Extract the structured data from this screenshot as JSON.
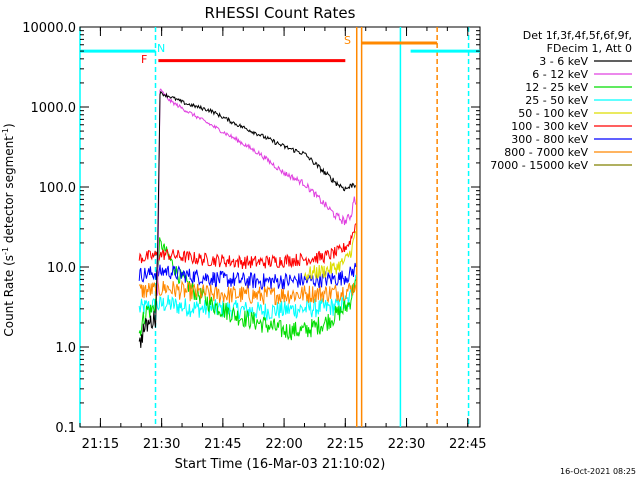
{
  "chart_data": {
    "type": "line",
    "title": "RHESSI Count Rates",
    "xlabel": "Start Time (16-Mar-03 21:10:02)",
    "ylabel_parts": [
      "Count Rate (s",
      "-1",
      " detector segment",
      "-1",
      ")"
    ],
    "yscale": "log",
    "ylim": [
      0.1,
      10000
    ],
    "xlim_minutes": [
      0,
      98
    ],
    "x_ticks": [
      {
        "m": 5,
        "label": "21:15"
      },
      {
        "m": 20,
        "label": "21:30"
      },
      {
        "m": 35,
        "label": "21:45"
      },
      {
        "m": 50,
        "label": "22:00"
      },
      {
        "m": 65,
        "label": "22:15"
      },
      {
        "m": 80,
        "label": "22:30"
      },
      {
        "m": 95,
        "label": "22:45"
      }
    ],
    "y_ticks": [
      {
        "v": 0.1,
        "label": "0.1"
      },
      {
        "v": 1,
        "label": "1.0"
      },
      {
        "v": 10,
        "label": "10.0"
      },
      {
        "v": 100,
        "label": "100.0"
      },
      {
        "v": 1000,
        "label": "1000.0"
      },
      {
        "v": 10000,
        "label": "10000.0"
      }
    ],
    "legend_header": [
      "Det 1f,3f,4f,5f,6f,9f,",
      "FDecim 1, Att 0"
    ],
    "series": [
      {
        "name": "3 - 6 keV",
        "color": "#000000",
        "points": [
          [
            14.5,
            1.0
          ],
          [
            15.5,
            1.6
          ],
          [
            16.5,
            1.9
          ],
          [
            17.5,
            2.1
          ],
          [
            18.5,
            2.3
          ],
          [
            19.0,
            15
          ],
          [
            19.6,
            1500
          ],
          [
            22,
            1350
          ],
          [
            26,
            1100
          ],
          [
            32,
            900
          ],
          [
            38,
            620
          ],
          [
            44,
            450
          ],
          [
            50,
            320
          ],
          [
            55,
            260
          ],
          [
            60,
            150
          ],
          [
            63,
            110
          ],
          [
            65,
            95
          ],
          [
            66,
            100
          ],
          [
            67,
            110
          ],
          [
            67.5,
            105
          ]
        ]
      },
      {
        "name": "6 - 12 keV",
        "color": "#e040e0",
        "points": [
          [
            19.0,
            4
          ],
          [
            19.6,
            1650
          ],
          [
            22,
            1200
          ],
          [
            26,
            900
          ],
          [
            32,
            600
          ],
          [
            38,
            400
          ],
          [
            44,
            260
          ],
          [
            50,
            150
          ],
          [
            55,
            110
          ],
          [
            60,
            60
          ],
          [
            63,
            42
          ],
          [
            65,
            37
          ],
          [
            66.5,
            45
          ],
          [
            67.2,
            80
          ],
          [
            67.6,
            60
          ]
        ]
      },
      {
        "name": "12 - 25 keV",
        "color": "#00dd00",
        "points": [
          [
            14.5,
            1.5
          ],
          [
            15.5,
            2.2
          ],
          [
            16.5,
            3.0
          ],
          [
            17.5,
            2.8
          ],
          [
            18.5,
            3.5
          ],
          [
            19.5,
            20
          ],
          [
            21,
            16
          ],
          [
            24,
            8
          ],
          [
            28,
            5
          ],
          [
            32,
            3.5
          ],
          [
            38,
            2.5
          ],
          [
            44,
            2.0
          ],
          [
            50,
            1.6
          ],
          [
            55,
            1.6
          ],
          [
            60,
            2.0
          ],
          [
            64,
            2.8
          ],
          [
            66,
            3.5
          ],
          [
            67,
            5.5
          ],
          [
            67.6,
            7
          ]
        ]
      },
      {
        "name": "25 - 50 keV",
        "color": "#00ffff",
        "points": [
          [
            14.5,
            3
          ],
          [
            17,
            3.2
          ],
          [
            19,
            3.3
          ],
          [
            21,
            3.5
          ],
          [
            25,
            3.2
          ],
          [
            30,
            3.0
          ],
          [
            35,
            3.0
          ],
          [
            40,
            2.9
          ],
          [
            45,
            2.8
          ],
          [
            50,
            2.9
          ],
          [
            55,
            3.0
          ],
          [
            60,
            3.1
          ],
          [
            64,
            3.3
          ],
          [
            66,
            3.8
          ],
          [
            67,
            6
          ],
          [
            67.6,
            8
          ]
        ]
      },
      {
        "name": "50 - 100 keV",
        "color": "#dddd00",
        "points": [
          [
            55,
            8
          ],
          [
            60,
            9
          ],
          [
            63,
            10
          ],
          [
            65,
            12
          ],
          [
            66.5,
            16
          ],
          [
            67.6,
            28
          ]
        ]
      },
      {
        "name": "100 - 300 keV",
        "color": "#ff0000",
        "points": [
          [
            14.5,
            13
          ],
          [
            17,
            13.5
          ],
          [
            19,
            14
          ],
          [
            21,
            14.5
          ],
          [
            25,
            13.5
          ],
          [
            30,
            12.5
          ],
          [
            35,
            12
          ],
          [
            40,
            11.5
          ],
          [
            45,
            11.5
          ],
          [
            50,
            12
          ],
          [
            55,
            12.5
          ],
          [
            60,
            13.5
          ],
          [
            64,
            16
          ],
          [
            66,
            20
          ],
          [
            67,
            28
          ],
          [
            67.6,
            35
          ]
        ]
      },
      {
        "name": "300 - 800 keV",
        "color": "#0000ff",
        "points": [
          [
            14.5,
            8
          ],
          [
            19,
            8.5
          ],
          [
            21,
            9
          ],
          [
            25,
            8
          ],
          [
            30,
            7.5
          ],
          [
            35,
            7
          ],
          [
            40,
            6.8
          ],
          [
            45,
            6.6
          ],
          [
            50,
            6.7
          ],
          [
            55,
            6.8
          ],
          [
            60,
            7
          ],
          [
            64,
            7.3
          ],
          [
            66,
            8
          ],
          [
            67,
            9
          ],
          [
            67.6,
            10
          ]
        ]
      },
      {
        "name": "800 - 7000 keV",
        "color": "#ff8800",
        "points": [
          [
            14.5,
            5
          ],
          [
            19,
            5.2
          ],
          [
            21,
            5.5
          ],
          [
            25,
            5
          ],
          [
            30,
            4.7
          ],
          [
            35,
            4.5
          ],
          [
            40,
            4.5
          ],
          [
            45,
            4.4
          ],
          [
            50,
            4.5
          ],
          [
            55,
            4.6
          ],
          [
            60,
            4.7
          ],
          [
            64,
            4.9
          ],
          [
            66,
            5.2
          ],
          [
            67,
            5.6
          ],
          [
            67.6,
            6
          ]
        ]
      },
      {
        "name": "7000 - 15000 keV",
        "color": "#808000",
        "points": []
      }
    ],
    "annotations": {
      "N_label": "N",
      "F_label": "F",
      "S_label": "S",
      "night_ranges_minutes": [
        [
          0,
          18.5
        ],
        [
          81,
          98
        ]
      ],
      "night_level": 5000,
      "flare_range_minutes": [
        19.2,
        65
      ],
      "flare_level": 3800,
      "saa_range_minutes": [
        69,
        87.5
      ],
      "saa_level": 6300,
      "vlines": [
        {
          "m": 0,
          "color": "#00ffff",
          "style": "solid"
        },
        {
          "m": 18.5,
          "color": "#00ffff",
          "style": "dashed"
        },
        {
          "m": 67.8,
          "color": "#ff8800",
          "style": "solid"
        },
        {
          "m": 69,
          "color": "#ff8800",
          "style": "solid"
        },
        {
          "m": 78.5,
          "color": "#00ffff",
          "style": "solid"
        },
        {
          "m": 87.5,
          "color": "#ff8800",
          "style": "dashed"
        },
        {
          "m": 95.2,
          "color": "#00ffff",
          "style": "dashed"
        }
      ]
    },
    "timestamp": "16-Oct-2021 08:25"
  }
}
